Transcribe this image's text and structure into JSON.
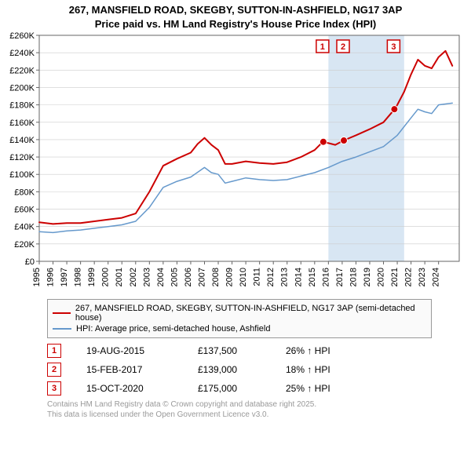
{
  "title_line1": "267, MANSFIELD ROAD, SKEGBY, SUTTON-IN-ASHFIELD, NG17 3AP",
  "title_line2": "Price paid vs. HM Land Registry's House Price Index (HPI)",
  "chart": {
    "type": "line",
    "background_color": "#ffffff",
    "grid_color": "#cccccc",
    "axis_color": "#666666",
    "tick_fontsize": 11,
    "x_years": [
      1995,
      1996,
      1997,
      1998,
      1999,
      2000,
      2001,
      2002,
      2003,
      2004,
      2005,
      2006,
      2007,
      2008,
      2009,
      2010,
      2011,
      2012,
      2013,
      2014,
      2015,
      2016,
      2017,
      2018,
      2019,
      2020,
      2021,
      2022,
      2023,
      2024
    ],
    "xlim": [
      1995,
      2025.5
    ],
    "ylim": [
      0,
      260000
    ],
    "ytick_step": 20000,
    "yticks": [
      "£0",
      "£20K",
      "£40K",
      "£60K",
      "£80K",
      "£100K",
      "£120K",
      "£140K",
      "£160K",
      "£180K",
      "£200K",
      "£220K",
      "£240K",
      "£260K"
    ],
    "hpi_shade_color": "#d8e6f3",
    "hpi_shade_start": 2016,
    "hpi_shade_end": 2021.5,
    "series": [
      {
        "name": "property",
        "label": "267, MANSFIELD ROAD, SKEGBY, SUTTON-IN-ASHFIELD, NG17 3AP (semi-detached house)",
        "color": "#cc0000",
        "line_width": 2,
        "points": [
          [
            1995,
            45000
          ],
          [
            1996,
            43000
          ],
          [
            1997,
            44000
          ],
          [
            1998,
            44000
          ],
          [
            1999,
            46000
          ],
          [
            2000,
            48000
          ],
          [
            2001,
            50000
          ],
          [
            2002,
            55000
          ],
          [
            2003,
            80000
          ],
          [
            2004,
            110000
          ],
          [
            2005,
            118000
          ],
          [
            2006,
            125000
          ],
          [
            2006.5,
            135000
          ],
          [
            2007,
            142000
          ],
          [
            2007.5,
            134000
          ],
          [
            2008,
            128000
          ],
          [
            2008.5,
            112000
          ],
          [
            2009,
            112000
          ],
          [
            2010,
            115000
          ],
          [
            2011,
            113000
          ],
          [
            2012,
            112000
          ],
          [
            2013,
            114000
          ],
          [
            2014,
            120000
          ],
          [
            2015,
            128000
          ],
          [
            2015.6,
            137500
          ],
          [
            2016,
            136000
          ],
          [
            2016.5,
            134000
          ],
          [
            2017.1,
            139000
          ],
          [
            2018,
            145000
          ],
          [
            2019,
            152000
          ],
          [
            2020,
            160000
          ],
          [
            2020.8,
            175000
          ],
          [
            2021,
            180000
          ],
          [
            2021.5,
            195000
          ],
          [
            2022,
            215000
          ],
          [
            2022.5,
            232000
          ],
          [
            2023,
            225000
          ],
          [
            2023.5,
            222000
          ],
          [
            2024,
            235000
          ],
          [
            2024.5,
            242000
          ],
          [
            2025,
            225000
          ]
        ]
      },
      {
        "name": "hpi",
        "label": "HPI: Average price, semi-detached house, Ashfield",
        "color": "#6699cc",
        "line_width": 1.5,
        "points": [
          [
            1995,
            34000
          ],
          [
            1996,
            33000
          ],
          [
            1997,
            35000
          ],
          [
            1998,
            36000
          ],
          [
            1999,
            38000
          ],
          [
            2000,
            40000
          ],
          [
            2001,
            42000
          ],
          [
            2002,
            46000
          ],
          [
            2003,
            62000
          ],
          [
            2004,
            85000
          ],
          [
            2005,
            92000
          ],
          [
            2006,
            97000
          ],
          [
            2007,
            108000
          ],
          [
            2007.5,
            102000
          ],
          [
            2008,
            100000
          ],
          [
            2008.5,
            90000
          ],
          [
            2009,
            92000
          ],
          [
            2010,
            96000
          ],
          [
            2011,
            94000
          ],
          [
            2012,
            93000
          ],
          [
            2013,
            94000
          ],
          [
            2014,
            98000
          ],
          [
            2015,
            102000
          ],
          [
            2016,
            108000
          ],
          [
            2017,
            115000
          ],
          [
            2018,
            120000
          ],
          [
            2019,
            126000
          ],
          [
            2020,
            132000
          ],
          [
            2021,
            145000
          ],
          [
            2022,
            165000
          ],
          [
            2022.5,
            175000
          ],
          [
            2023,
            172000
          ],
          [
            2023.5,
            170000
          ],
          [
            2024,
            180000
          ],
          [
            2025,
            182000
          ]
        ]
      }
    ],
    "markers": [
      {
        "n": "1",
        "x": 2015.63,
        "y": 137500,
        "color": "#cc0000"
      },
      {
        "n": "2",
        "x": 2017.12,
        "y": 139000,
        "color": "#cc0000"
      },
      {
        "n": "3",
        "x": 2020.79,
        "y": 175000,
        "color": "#cc0000"
      }
    ]
  },
  "legend": {
    "series1_color": "#cc0000",
    "series1_label": "267, MANSFIELD ROAD, SKEGBY, SUTTON-IN-ASHFIELD, NG17 3AP (semi-detached house)",
    "series2_color": "#6699cc",
    "series2_label": "HPI: Average price, semi-detached house, Ashfield"
  },
  "sales": [
    {
      "n": "1",
      "color": "#cc0000",
      "date": "19-AUG-2015",
      "price": "£137,500",
      "pct": "26% ↑ HPI"
    },
    {
      "n": "2",
      "color": "#cc0000",
      "date": "15-FEB-2017",
      "price": "£139,000",
      "pct": "18% ↑ HPI"
    },
    {
      "n": "3",
      "color": "#cc0000",
      "date": "15-OCT-2020",
      "price": "£175,000",
      "pct": "25% ↑ HPI"
    }
  ],
  "footer": {
    "line1": "Contains HM Land Registry data © Crown copyright and database right 2025.",
    "line2": "This data is licensed under the Open Government Licence v3.0."
  }
}
